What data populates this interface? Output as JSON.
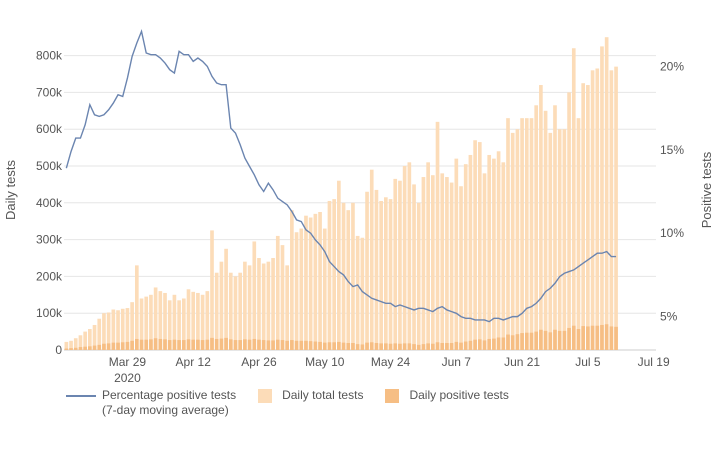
{
  "chart_data": {
    "type": "bar+line",
    "x_start": "2020-03-16",
    "x_end": "2020-07-19",
    "x_ticks": [
      {
        "label": "Mar 29",
        "date": "2020-03-29",
        "sub": "2020"
      },
      {
        "label": "Apr 12",
        "date": "2020-04-12"
      },
      {
        "label": "Apr 26",
        "date": "2020-04-26"
      },
      {
        "label": "May 10",
        "date": "2020-05-10"
      },
      {
        "label": "May 24",
        "date": "2020-05-24"
      },
      {
        "label": "Jun 7",
        "date": "2020-06-07"
      },
      {
        "label": "Jun 21",
        "date": "2020-06-21"
      },
      {
        "label": "Jul 5",
        "date": "2020-07-05"
      },
      {
        "label": "Jul 19",
        "date": "2020-07-19"
      }
    ],
    "y_left": {
      "title": "Daily tests",
      "range": [
        0,
        875000
      ],
      "ticks": [
        0,
        100000,
        200000,
        300000,
        400000,
        500000,
        600000,
        700000,
        800000
      ],
      "tick_labels": [
        "0",
        "100k",
        "200k",
        "300k",
        "400k",
        "500k",
        "600k",
        "700k",
        "800k"
      ]
    },
    "y_right": {
      "title": "Positive tests",
      "range": [
        3.0,
        22.3
      ],
      "ticks": [
        5,
        10,
        15,
        20
      ],
      "tick_labels": [
        "5%",
        "10%",
        "15%",
        "20%"
      ]
    },
    "series": [
      {
        "name": "Daily total tests",
        "kind": "bar",
        "axis": "left",
        "color": "#fcdcb8",
        "values": [
          22000,
          25000,
          32000,
          40000,
          50000,
          57000,
          68000,
          85000,
          100000,
          102000,
          110000,
          108000,
          112000,
          114000,
          130000,
          230000,
          140000,
          145000,
          150000,
          170000,
          160000,
          155000,
          135000,
          150000,
          135000,
          140000,
          165000,
          158000,
          155000,
          150000,
          160000,
          325000,
          210000,
          240000,
          275000,
          210000,
          200000,
          210000,
          240000,
          230000,
          295000,
          250000,
          235000,
          240000,
          250000,
          310000,
          285000,
          230000,
          380000,
          320000,
          330000,
          365000,
          360000,
          370000,
          375000,
          330000,
          405000,
          410000,
          460000,
          400000,
          380000,
          400000,
          310000,
          305000,
          430000,
          490000,
          435000,
          405000,
          415000,
          410000,
          465000,
          460000,
          500000,
          510000,
          450000,
          400000,
          470000,
          510000,
          475000,
          620000,
          480000,
          470000,
          455000,
          520000,
          445000,
          505000,
          530000,
          570000,
          565000,
          480000,
          530000,
          520000,
          540000,
          510000,
          630000,
          590000,
          600000,
          630000,
          630000,
          630000,
          665000,
          720000,
          650000,
          590000,
          665000,
          600000,
          600000,
          700000,
          820000,
          630000,
          725000,
          720000,
          760000,
          765000,
          825000,
          850000,
          760000,
          770000
        ],
        "values_note": "estimated from chart"
      },
      {
        "name": "Daily positive tests",
        "kind": "bar",
        "axis": "left",
        "color": "#f6be84",
        "values": [
          4000,
          5000,
          6000,
          8000,
          9000,
          10000,
          12000,
          14000,
          17000,
          18000,
          20000,
          20000,
          21000,
          22000,
          25000,
          30000,
          28000,
          28000,
          29000,
          32000,
          30000,
          29000,
          27000,
          28000,
          27000,
          27000,
          29000,
          28000,
          28000,
          27000,
          28000,
          33000,
          30000,
          31000,
          33000,
          29000,
          27000,
          27000,
          29000,
          28000,
          30000,
          28000,
          27000,
          26000,
          26000,
          28000,
          27000,
          25000,
          27000,
          25000,
          25000,
          25000,
          24000,
          23000,
          22000,
          20000,
          21000,
          21000,
          22000,
          20000,
          19000,
          19000,
          16000,
          15000,
          20000,
          21000,
          19000,
          18000,
          18000,
          17000,
          18000,
          17000,
          18000,
          18000,
          16000,
          14000,
          16000,
          18000,
          17000,
          21000,
          19000,
          19000,
          19000,
          22000,
          20000,
          23000,
          25000,
          28000,
          29000,
          26000,
          30000,
          31000,
          34000,
          34000,
          42000,
          40000,
          43000,
          46000,
          47000,
          47000,
          50000,
          55000,
          52000,
          48000,
          55000,
          52000,
          52000,
          60000,
          66000,
          57000,
          65000,
          64000,
          66000,
          66000,
          68000,
          70000,
          64000,
          63000
        ]
      },
      {
        "name": "Percentage positive tests\n(7-day moving average)",
        "kind": "line",
        "axis": "right",
        "color": "#6b85b0",
        "values": [
          13.9,
          14.9,
          15.7,
          15.7,
          16.5,
          17.7,
          17.1,
          17.0,
          17.1,
          17.4,
          17.8,
          18.3,
          18.2,
          19.3,
          20.6,
          21.4,
          22.1,
          20.8,
          20.7,
          20.7,
          20.5,
          20.2,
          19.8,
          19.6,
          20.9,
          20.7,
          20.7,
          20.3,
          20.5,
          20.3,
          20.0,
          19.4,
          19.0,
          18.9,
          18.9,
          16.3,
          16.0,
          15.3,
          14.5,
          14.0,
          13.5,
          12.9,
          12.5,
          13.0,
          12.6,
          12.1,
          11.9,
          11.7,
          11.3,
          10.8,
          10.7,
          10.2,
          10.0,
          9.6,
          9.3,
          8.9,
          8.3,
          8.0,
          7.7,
          7.5,
          7.1,
          6.8,
          6.9,
          6.5,
          6.3,
          6.1,
          6.0,
          5.9,
          5.8,
          5.8,
          5.6,
          5.7,
          5.6,
          5.5,
          5.4,
          5.5,
          5.5,
          5.4,
          5.3,
          5.5,
          5.6,
          5.4,
          5.3,
          5.2,
          5.0,
          4.9,
          4.9,
          4.8,
          4.8,
          4.8,
          4.7,
          4.9,
          4.9,
          4.8,
          4.9,
          5.0,
          5.0,
          5.2,
          5.5,
          5.6,
          5.8,
          6.1,
          6.5,
          6.7,
          7.0,
          7.4,
          7.6,
          7.7,
          7.8,
          8.0,
          8.2,
          8.4,
          8.6,
          8.8,
          8.8,
          8.9,
          8.6,
          8.6
        ],
        "values_note": "estimated from chart"
      }
    ],
    "legend_position": "bottom-left"
  },
  "legend": [
    {
      "label": "Percentage positive tests",
      "sublabel": "(7-day moving average)",
      "kind": "line",
      "color": "#6b85b0"
    },
    {
      "label": "Daily total tests",
      "kind": "box",
      "color": "#fcdcb8"
    },
    {
      "label": "Daily positive tests",
      "kind": "box",
      "color": "#f6be84"
    }
  ]
}
